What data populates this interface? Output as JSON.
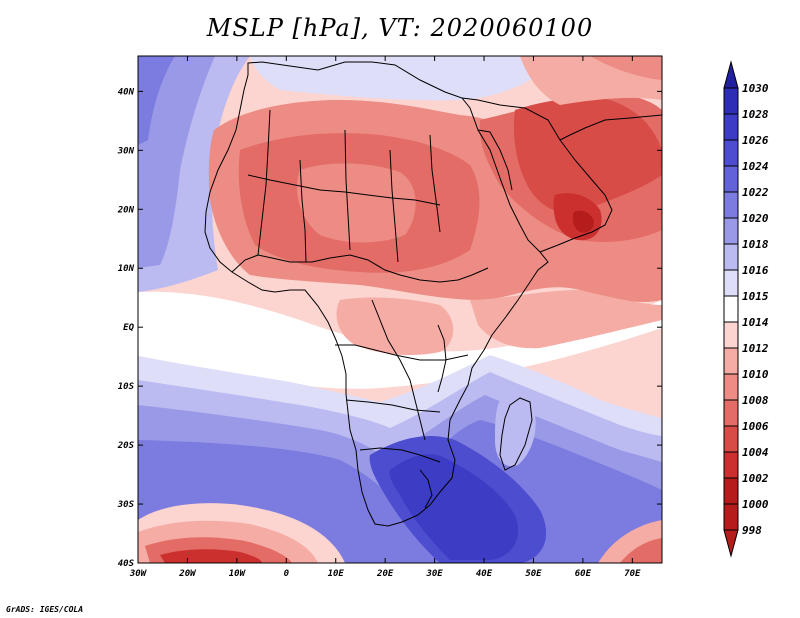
{
  "title": "MSLP [hPa], VT: 2020060100",
  "credit": "GrADS: IGES/COLA",
  "map": {
    "region": "Africa",
    "variable": "Mean sea level pressure",
    "units": "hPa",
    "lon_range": [
      -30,
      76
    ],
    "lat_range": [
      -40,
      46
    ],
    "lon_ticks": [
      "30W",
      "20W",
      "10W",
      "0",
      "10E",
      "20E",
      "30E",
      "40E",
      "50E",
      "60E",
      "70E"
    ],
    "lon_tick_values": [
      -30,
      -20,
      -10,
      0,
      10,
      20,
      30,
      40,
      50,
      60,
      70
    ],
    "lat_ticks": [
      "40N",
      "30N",
      "20N",
      "10N",
      "EQ",
      "10S",
      "20S",
      "30S",
      "40S"
    ],
    "lat_tick_values": [
      40,
      30,
      20,
      10,
      0,
      -10,
      -20,
      -30,
      -40
    ]
  },
  "colorbar": {
    "levels": [
      "1030",
      "1028",
      "1026",
      "1024",
      "1022",
      "1020",
      "1018",
      "1016",
      "1015",
      "1014",
      "1012",
      "1010",
      "1008",
      "1006",
      "1004",
      "1002",
      "1000",
      "998"
    ],
    "colors": [
      "#2121a0",
      "#2e2eb4",
      "#3c3cc4",
      "#4d4dcf",
      "#6363d8",
      "#7b7be0",
      "#9999e8",
      "#bbbbf1",
      "#dedef9",
      "#ffffff",
      "#fcd4d0",
      "#f5aca5",
      "#ec8c84",
      "#e36c66",
      "#d84c48",
      "#cc302e",
      "#b51c1c",
      "#b51c1c"
    ]
  }
}
